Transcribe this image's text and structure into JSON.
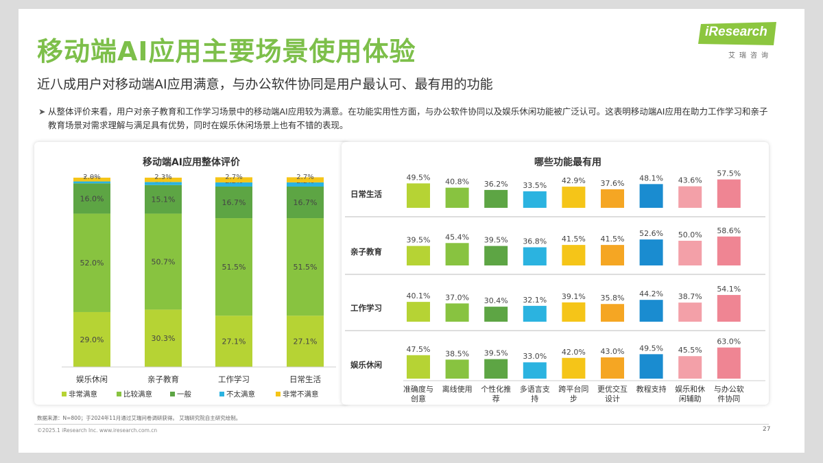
{
  "title": "移动端AI应用主要场景使用体验",
  "subtitle": "近八成用户对移动端AI应用满意，与办公软件协同是用户最认可、最有用的功能",
  "logo": {
    "brand": "iResearch",
    "sub": "艾瑞咨询"
  },
  "bullet": "从整体评价来看，用户对亲子教育和工作学习场景中的移动端AI应用较为满意。在功能实用性方面，与办公软件协同以及娱乐休闲功能被广泛认可。这表明移动端AI应用在助力工作学习和亲子教育场景对需求理解与满足具有优势，同时在娱乐休闲场景上也有不错的表现。",
  "source": "数据来源：N=800；于2024年11月通过艾瑞问卷调研获得。 艾瑞研究院自主研究绘制。",
  "copyright": "©2025.1 iResearch Inc.  www.iresearch.com.cn",
  "page_number": "27",
  "chart_data": [
    {
      "type": "bar",
      "stacked": true,
      "title": "移动端AI应用整体评价",
      "categories": [
        "娱乐休闲",
        "亲子教育",
        "工作学习",
        "日常生活"
      ],
      "ylim": [
        0,
        100
      ],
      "legend_position": "bottom",
      "series": [
        {
          "name": "非常满意",
          "color": "#b6d334",
          "values": [
            29.0,
            30.3,
            27.1,
            27.1
          ],
          "labels": [
            "29.0%",
            "30.3%",
            "27.1%",
            "27.1%"
          ]
        },
        {
          "name": "比较满意",
          "color": "#88c340",
          "values": [
            52.0,
            50.7,
            51.5,
            51.5
          ],
          "labels": [
            "52.0%",
            "50.7%",
            "51.5%",
            "51.5%"
          ]
        },
        {
          "name": "一般",
          "color": "#5da544",
          "values": [
            16.0,
            15.1,
            16.7,
            16.7
          ],
          "labels": [
            "16.0%",
            "15.1%",
            "16.7%",
            "16.7%"
          ]
        },
        {
          "name": "不太满意",
          "color": "#2bb3e0",
          "values": [
            1.0,
            1.6,
            2.2,
            2.2
          ],
          "labels": [
            "1.0%",
            "1.6%",
            "2.2%",
            "2.2%"
          ]
        },
        {
          "name": "非常不满意",
          "color": "#f5c518",
          "values": [
            2.0,
            2.3,
            2.7,
            2.7
          ],
          "labels": [
            "2.0%",
            "2.3%",
            "2.7%",
            "2.7%"
          ]
        }
      ]
    },
    {
      "type": "bar",
      "title": "哪些功能最有用",
      "categories": [
        "准确度与创意",
        "离线使用",
        "个性化推荐",
        "多语言支持",
        "跨平台同步",
        "更优交互设计",
        "教程支持",
        "娱乐和休闲辅助",
        "与办公软件协同"
      ],
      "category_lines": [
        [
          "准确度与",
          "创意"
        ],
        [
          "离线使用"
        ],
        [
          "个性化推",
          "荐"
        ],
        [
          "多语言支",
          "持"
        ],
        [
          "跨平台同",
          "步"
        ],
        [
          "更优交互",
          "设计"
        ],
        [
          "教程支持"
        ],
        [
          "娱乐和休",
          "闲辅助"
        ],
        [
          "与办公软",
          "件协同"
        ]
      ],
      "colors": [
        "#b6d334",
        "#88c340",
        "#5da544",
        "#2bb3e0",
        "#f5c518",
        "#f5a623",
        "#1a8cd0",
        "#f3a0a8",
        "#ef8593"
      ],
      "rows": [
        {
          "name": "日常生活",
          "values": [
            49.5,
            40.8,
            36.2,
            33.5,
            42.9,
            37.6,
            48.1,
            43.6,
            57.5
          ],
          "labels": [
            "49.5%",
            "40.8%",
            "36.2%",
            "33.5%",
            "42.9%",
            "37.6%",
            "48.1%",
            "43.6%",
            "57.5%"
          ]
        },
        {
          "name": "亲子教育",
          "values": [
            39.5,
            45.4,
            39.5,
            36.8,
            41.5,
            41.5,
            52.6,
            50.0,
            58.6
          ],
          "labels": [
            "39.5%",
            "45.4%",
            "39.5%",
            "36.8%",
            "41.5%",
            "41.5%",
            "52.6%",
            "50.0%",
            "58.6%"
          ]
        },
        {
          "name": "工作学习",
          "values": [
            40.1,
            37.0,
            30.4,
            32.1,
            39.1,
            35.8,
            44.2,
            38.7,
            54.1
          ],
          "labels": [
            "40.1%",
            "37.0%",
            "30.4%",
            "32.1%",
            "39.1%",
            "35.8%",
            "44.2%",
            "38.7%",
            "54.1%"
          ]
        },
        {
          "name": "娱乐休闲",
          "values": [
            47.5,
            38.5,
            39.5,
            33.0,
            42.0,
            43.0,
            49.5,
            45.5,
            63.0
          ],
          "labels": [
            "47.5%",
            "38.5%",
            "39.5%",
            "33.0%",
            "42.0%",
            "43.0%",
            "49.5%",
            "45.5%",
            "63.0%"
          ]
        }
      ]
    }
  ]
}
